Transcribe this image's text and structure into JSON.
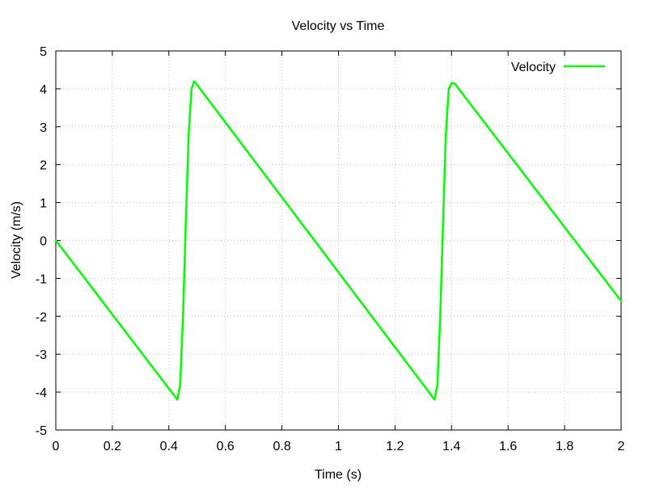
{
  "chart_data": {
    "type": "line",
    "title": "Velocity vs Time",
    "xlabel": "Time (s)",
    "ylabel": "Velocity (m/s)",
    "xlim": [
      0,
      2
    ],
    "ylim": [
      -5,
      5
    ],
    "xticks": [
      0,
      0.2,
      0.4,
      0.6,
      0.8,
      1,
      1.2,
      1.4,
      1.6,
      1.8,
      2
    ],
    "xtick_labels": [
      "0",
      "0.2",
      "0.4",
      "0.6",
      "0.8",
      "1",
      "1.2",
      "1.4",
      "1.6",
      "1.8",
      "2"
    ],
    "yticks": [
      -5,
      -4,
      -3,
      -2,
      -1,
      0,
      1,
      2,
      3,
      4,
      5
    ],
    "ytick_labels": [
      "-5",
      "-4",
      "-3",
      "-2",
      "-1",
      "0",
      "1",
      "2",
      "3",
      "4",
      "5"
    ],
    "grid": true,
    "legend_position": "top-right",
    "series": [
      {
        "name": "Velocity",
        "color": "#00ff00",
        "x": [
          0,
          0.43,
          0.44,
          0.45,
          0.46,
          0.47,
          0.48,
          0.49,
          1.34,
          1.35,
          1.36,
          1.37,
          1.38,
          1.39,
          1.4,
          1.41,
          2.0
        ],
        "y": [
          0,
          -4.2,
          -3.8,
          -2.0,
          0.5,
          2.8,
          4.0,
          4.2,
          -4.2,
          -3.8,
          -2.0,
          0.5,
          2.8,
          4.0,
          4.15,
          4.15,
          -1.6
        ]
      }
    ]
  }
}
